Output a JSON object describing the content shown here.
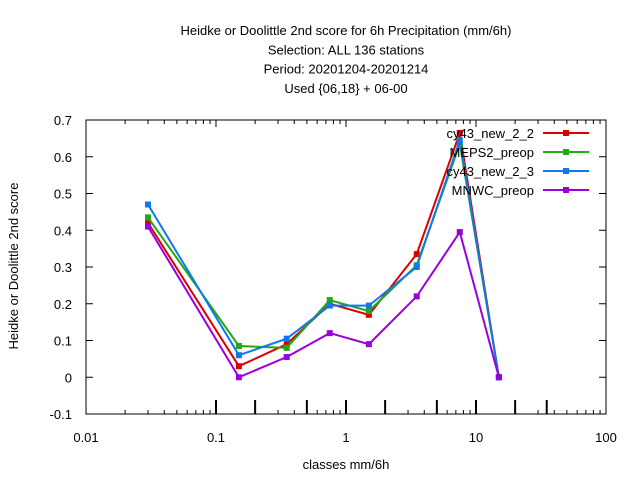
{
  "chart_data": {
    "type": "line",
    "title_lines": [
      "Heidke or Doolittle 2nd score  for 6h Precipitation (mm/6h)",
      "Selection: ALL    136 stations",
      "Period: 20201204-20201214",
      "Used {06,18} + 06-00"
    ],
    "xlabel": "classes mm/6h",
    "ylabel": "Heidke or Doolittle 2nd score",
    "x_scale": "log",
    "xlim": [
      0.01,
      100
    ],
    "ylim": [
      -0.1,
      0.7
    ],
    "x_ticks": [
      0.01,
      0.1,
      1,
      10,
      100
    ],
    "x_tick_labels": [
      "0.01",
      "0.1",
      "1",
      "10",
      "100"
    ],
    "y_ticks": [
      -0.1,
      0,
      0.1,
      0.2,
      0.3,
      0.4,
      0.5,
      0.6,
      0.7
    ],
    "y_tick_labels": [
      "-0.1",
      "0",
      "0.1",
      "0.2",
      "0.3",
      "0.4",
      "0.5",
      "0.6",
      "0.7"
    ],
    "x_class_marks": [
      0.1,
      0.2,
      0.5,
      1,
      2,
      5,
      10,
      20,
      35
    ],
    "grid": false,
    "legend_position": "top-right",
    "x": [
      0.03,
      0.15,
      0.35,
      0.75,
      1.5,
      3.5,
      7.5,
      15
    ],
    "series": [
      {
        "name": "cy43_new_2_2",
        "color": "#dd0000",
        "values": [
          0.42,
          0.03,
          0.09,
          0.2,
          0.17,
          0.335,
          0.665,
          0.0
        ]
      },
      {
        "name": "MEPS2_preop",
        "color": "#22aa11",
        "values": [
          0.435,
          0.085,
          0.08,
          0.21,
          0.18,
          0.305,
          0.635,
          0.0
        ]
      },
      {
        "name": "cy43_new_2_3",
        "color": "#1177ee",
        "values": [
          0.47,
          0.06,
          0.105,
          0.195,
          0.195,
          0.3,
          0.645,
          0.0
        ]
      },
      {
        "name": "MNWC_preop",
        "color": "#9900dd",
        "values": [
          0.41,
          0.0,
          0.055,
          0.12,
          0.09,
          0.22,
          0.395,
          0.0
        ]
      }
    ]
  }
}
